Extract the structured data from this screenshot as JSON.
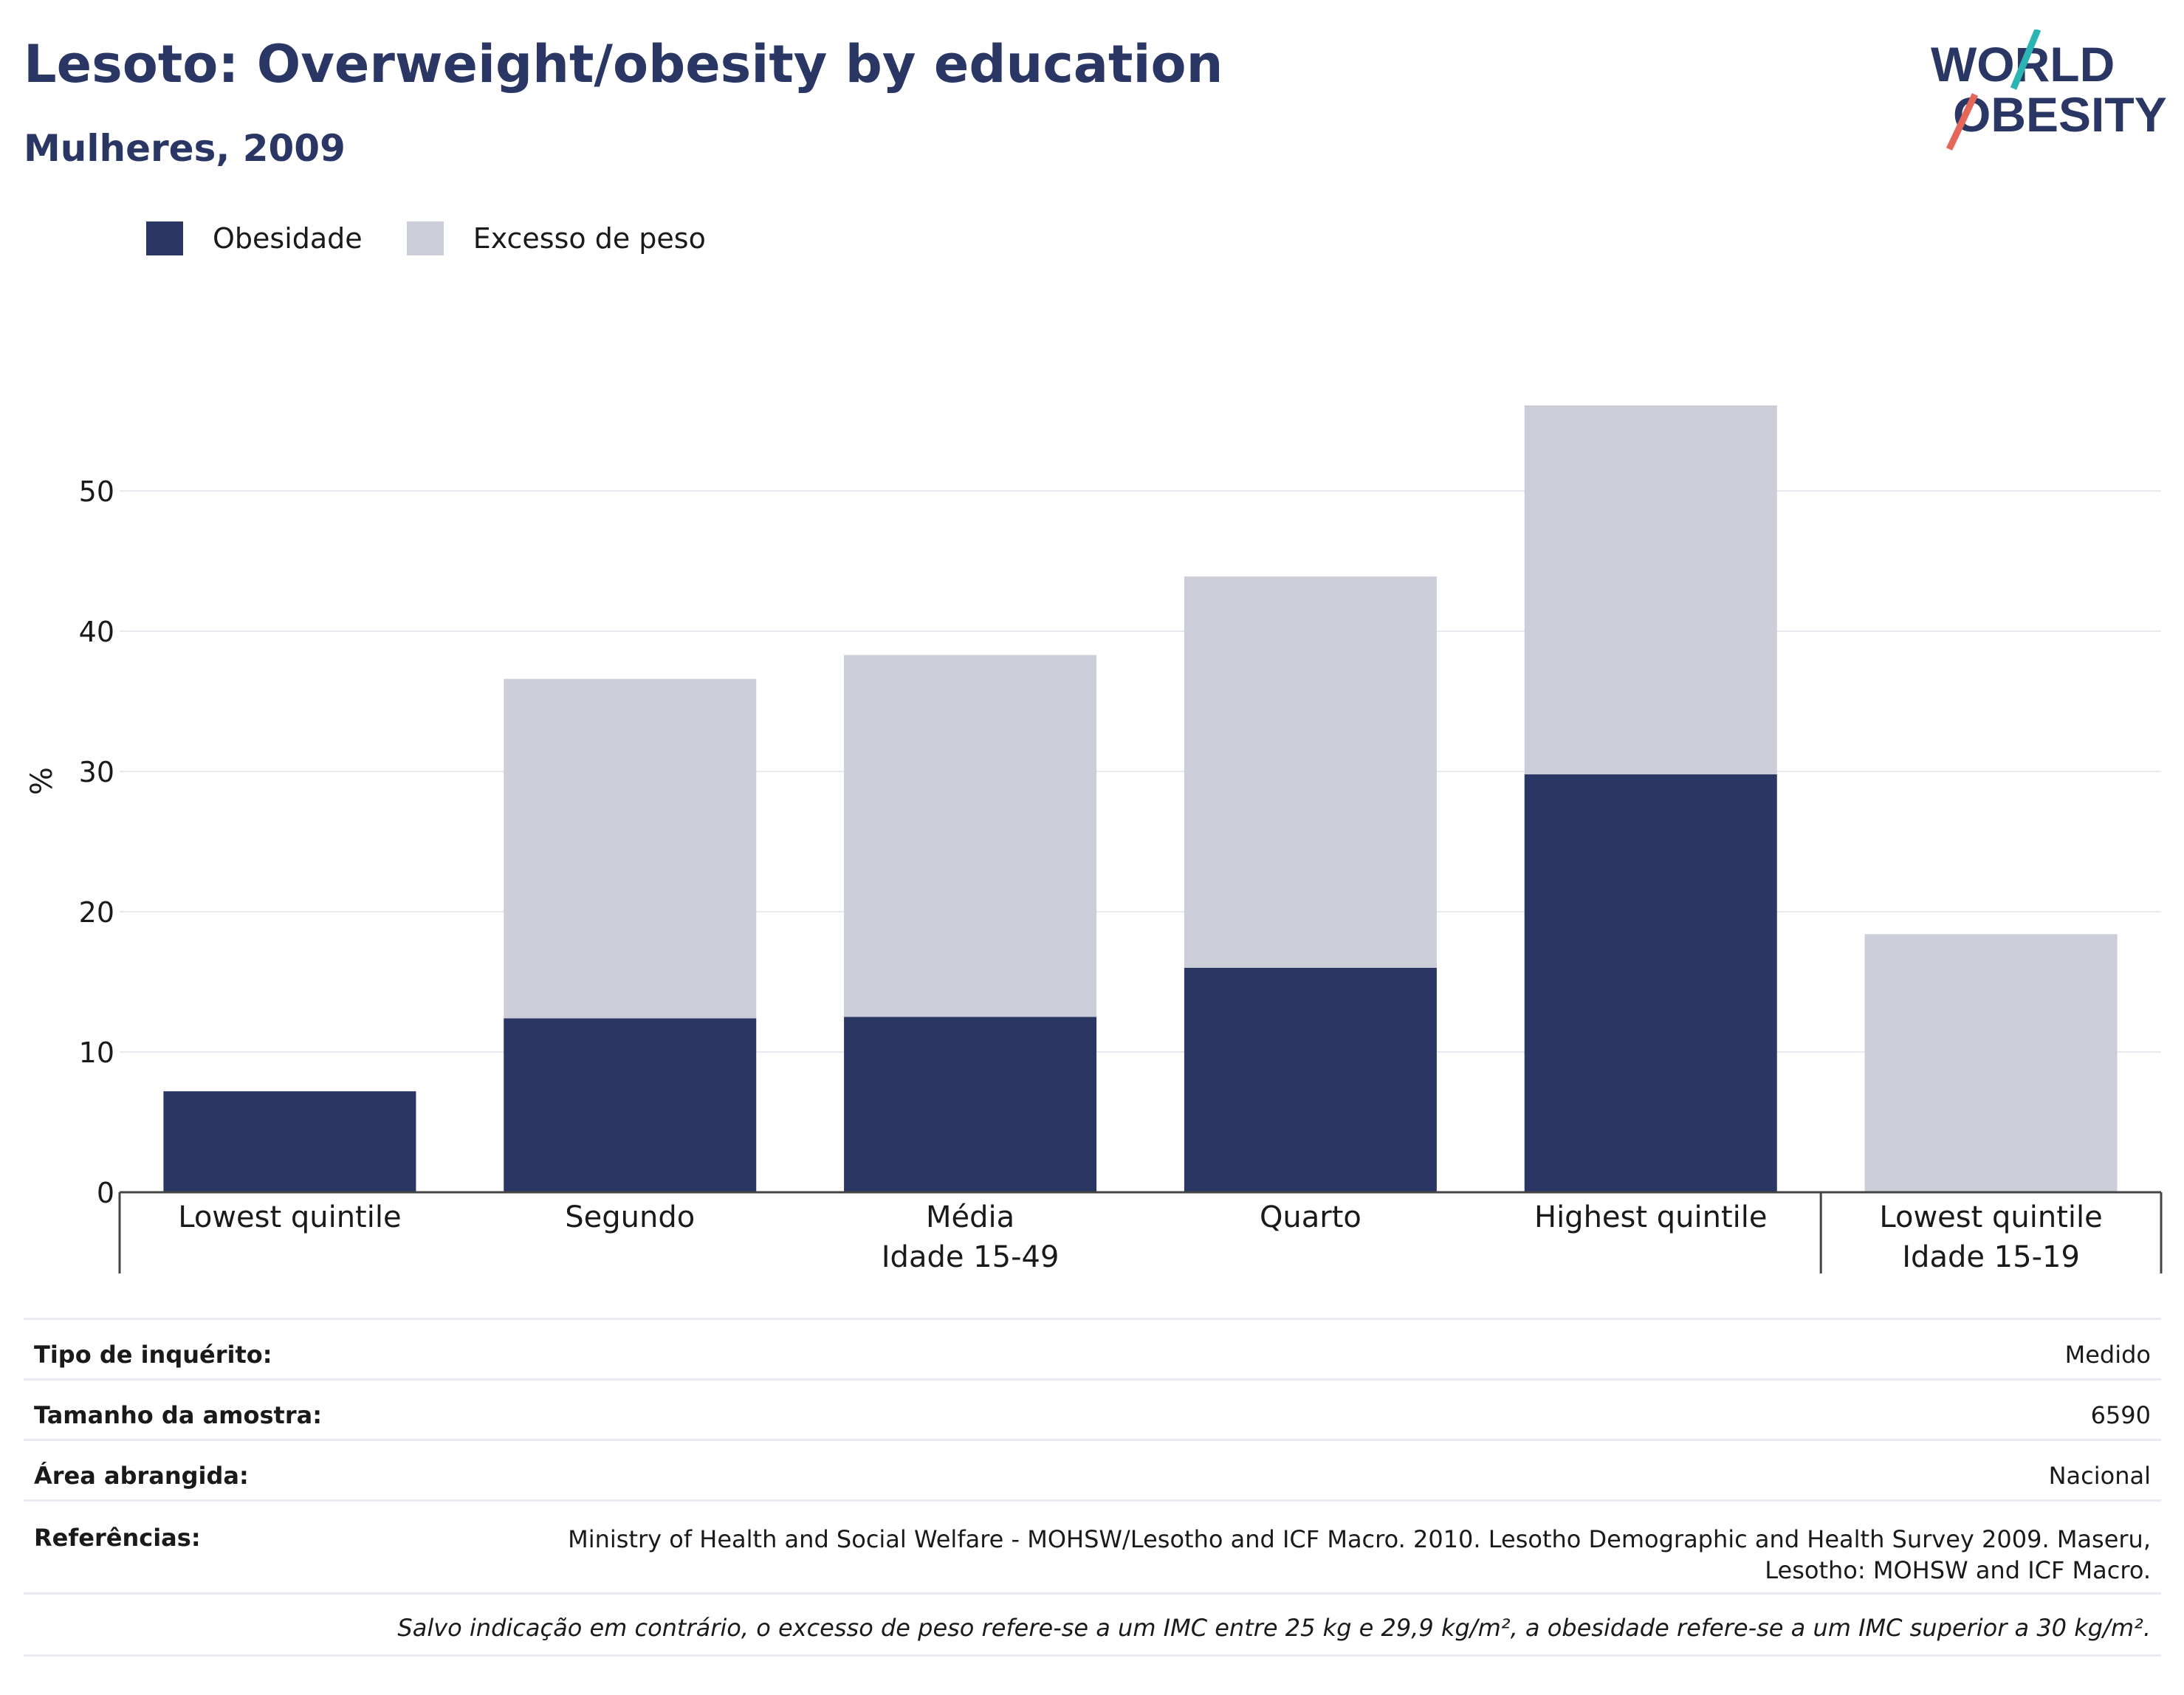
{
  "title": "Lesoto: Overweight/obesity by education",
  "subtitle": "Mulheres, 2009",
  "logo": {
    "line1": "WORLD",
    "line2": "OBESITY",
    "accent_teal": "#2bb5b2",
    "accent_red": "#e5675a"
  },
  "legend": [
    {
      "label": "Obesidade",
      "color": "#2a3765"
    },
    {
      "label": "Excesso de peso",
      "color": "#cbcdd9"
    }
  ],
  "chart_data": {
    "type": "bar",
    "stacked": true,
    "ylabel": "%",
    "ylim": [
      0,
      60
    ],
    "yticks": [
      0,
      10,
      20,
      30,
      40,
      50
    ],
    "grid": true,
    "legend_position": "top-left",
    "categories": [
      "Lowest quintile",
      "Segundo",
      "Média",
      "Quarto",
      "Highest quintile",
      "Lowest quintile"
    ],
    "groups": [
      {
        "label": "Idade 15-49",
        "categories": [
          0,
          1,
          2,
          3,
          4
        ]
      },
      {
        "label": "Idade 15-19",
        "categories": [
          5
        ]
      }
    ],
    "series": [
      {
        "name": "Obesidade",
        "color": "#2a3765",
        "values": [
          7.2,
          12.4,
          12.5,
          16.0,
          29.8,
          0
        ]
      },
      {
        "name": "Excesso de peso",
        "color": "#cbcdd9",
        "values": [
          0,
          24.2,
          25.8,
          27.9,
          26.3,
          18.4
        ]
      }
    ]
  },
  "info": [
    {
      "key": "Tipo de inquérito:",
      "value": "Medido"
    },
    {
      "key": "Tamanho da amostra:",
      "value": "6590"
    },
    {
      "key": "Área abrangida:",
      "value": "Nacional"
    },
    {
      "key": "Referências:",
      "value_lines": [
        "Ministry of Health and Social Welfare - MOHSW/Lesotho and ICF Macro. 2010. Lesotho Demographic and Health Survey 2009. Maseru,",
        "Lesotho: MOHSW and ICF Macro."
      ]
    }
  ],
  "note": "Salvo indicação em contrário, o excesso de peso refere-se a um IMC entre 25 kg e 29,9 kg/m², a obesidade refere-se a um IMC superior a 30 kg/m²."
}
